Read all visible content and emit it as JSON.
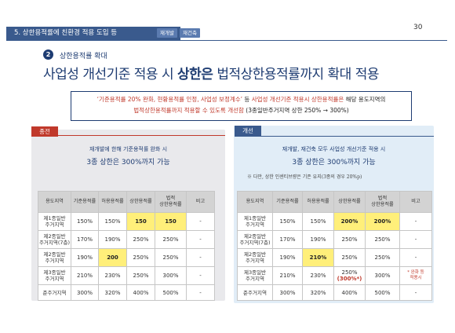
{
  "header": {
    "section_label": "5. 상한용적률에 친환경 적용 도입 등",
    "tags": [
      "재개발",
      "재건축"
    ],
    "page_number": "30"
  },
  "section": {
    "number": "2",
    "subtitle": "상한용적률 확대",
    "title_part1": "사업성 개선기준 적용 시 ",
    "title_part2": "상한은",
    "title_part3": " 법적상한용적률까지 확대 적용"
  },
  "callout": {
    "line1_red": "‘기준용적률 20% 완화, 현황용적률 인정, 사업성 보정계수’",
    "line1_mid": " 등 ",
    "line1_red2": "사업성 개선기준 적용시 상한용적률은",
    "line1_end": " 해당 용도지역의",
    "line2_red": "법적상한용적률까지 적용할 수 있도록 개선함",
    "line2_end": " (3종일반주거지역 상한 250% → 300%)"
  },
  "left": {
    "tag": "종전",
    "desc1": "재개발에 한해 기준용적률 완화 시",
    "desc2": "3종 상한은 300%까지 가능",
    "headers": [
      "용도지역",
      "기준용적률",
      "허용용적률",
      "상한용적률",
      "법적\n상한용적률",
      "비고"
    ],
    "rows": [
      [
        "제1종일반\n주거지역",
        "150%",
        "150%",
        "150",
        "150",
        "-"
      ],
      [
        "제2종일반\n주거지역(7층)",
        "170%",
        "190%",
        "250%",
        "250%",
        "-"
      ],
      [
        "제2종일반\n주거지역",
        "190%",
        "200",
        "250%",
        "250%",
        "-"
      ],
      [
        "제3종일반\n주거지역",
        "210%",
        "230%",
        "250%",
        "300%",
        "-"
      ],
      [
        "준주거지역",
        "300%",
        "320%",
        "400%",
        "500%",
        "-"
      ]
    ]
  },
  "right": {
    "tag": "개선",
    "desc1": "재개발, 재건축 모두 사업성 개선기준 적용 시",
    "desc2": "3종 상한은 300%까지 가능",
    "note": "※ 다만, 상한 인센티브량은 기존 유지(3종의 경우 20%p)",
    "headers": [
      "용도지역",
      "기준용적률",
      "허용용적률",
      "상한용적률",
      "법적\n상한용적률",
      "비고"
    ],
    "rows": [
      [
        "제1종일반\n주거지역",
        "150%",
        "150%",
        "200%",
        "200%",
        "-"
      ],
      [
        "제2종일반\n주거지역(7층)",
        "170%",
        "190%",
        "250%",
        "250%",
        "-"
      ],
      [
        "제2종일반\n주거지역",
        "190%",
        "210%",
        "250%",
        "250%",
        "-"
      ],
      [
        "제3종일반\n주거지역",
        "210%",
        "230%",
        "250%",
        "300%",
        "* 완화 등\n적용시"
      ],
      [
        "준주거지역",
        "300%",
        "320%",
        "400%",
        "500%",
        "-"
      ]
    ],
    "row4_upper_extra": "(300%*)"
  },
  "colors": {
    "navy": "#1e3c72",
    "header_blue": "#3a5a8d",
    "red": "#c0392b",
    "highlight": "#ffef7a"
  }
}
